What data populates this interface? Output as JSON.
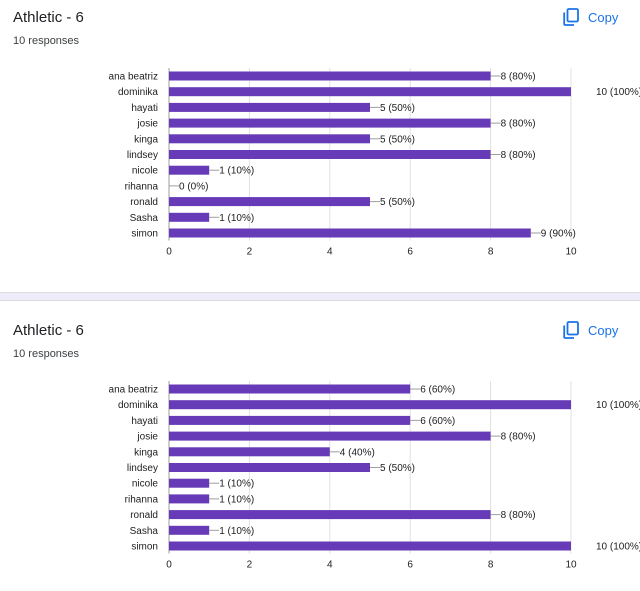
{
  "colors": {
    "bar": "#673ab7",
    "accent": "#1a73e8",
    "grid": "#e0e0e0",
    "divider": "#f0ebf8"
  },
  "cards": [
    {
      "title": "Athletic - 6",
      "responses": "10 responses",
      "copy_label": "Copy",
      "copy_icon": "copy-icon"
    },
    {
      "title": "Athletic - 6",
      "responses": "10 responses",
      "copy_label": "Copy",
      "copy_icon": "copy-icon"
    }
  ],
  "chart_data": [
    {
      "type": "bar",
      "orientation": "horizontal",
      "categories": [
        "ana beatriz",
        "dominika",
        "hayati",
        "josie",
        "kinga",
        "lindsey",
        "nicole",
        "rihanna",
        "ronald",
        "Sasha",
        "simon"
      ],
      "values": [
        8,
        10,
        5,
        8,
        5,
        8,
        1,
        0,
        5,
        1,
        9
      ],
      "data_labels": [
        "8 (80%)",
        "10 (100%)",
        "5 (50%)",
        "8 (80%)",
        "5 (50%)",
        "8 (80%)",
        "1 (10%)",
        "0 (0%)",
        "5 (50%)",
        "1 (10%)",
        "9 (90%)"
      ],
      "xlim": [
        0,
        10
      ],
      "xticks": [
        "0",
        "2",
        "4",
        "6",
        "8",
        "10"
      ],
      "grid": true
    },
    {
      "type": "bar",
      "orientation": "horizontal",
      "categories": [
        "ana beatriz",
        "dominika",
        "hayati",
        "josie",
        "kinga",
        "lindsey",
        "nicole",
        "rihanna",
        "ronald",
        "Sasha",
        "simon"
      ],
      "values": [
        6,
        10,
        6,
        8,
        4,
        5,
        1,
        1,
        8,
        1,
        10
      ],
      "data_labels": [
        "6 (60%)",
        "10 (100%)",
        "6 (60%)",
        "8 (80%)",
        "4 (40%)",
        "5 (50%)",
        "1 (10%)",
        "1 (10%)",
        "8 (80%)",
        "1 (10%)",
        "10 (100%)"
      ],
      "xlim": [
        0,
        10
      ],
      "xticks": [
        "0",
        "2",
        "4",
        "6",
        "8",
        "10"
      ],
      "grid": true
    }
  ]
}
